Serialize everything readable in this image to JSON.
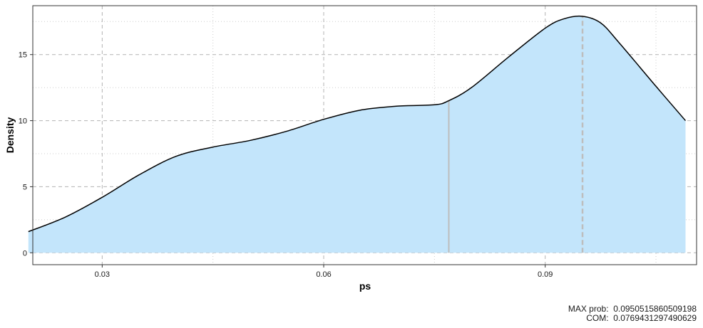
{
  "chart_data": {
    "type": "area",
    "title": "",
    "xlabel": "ps",
    "ylabel": "Density",
    "xlim": [
      0.0206,
      0.1105
    ],
    "ylim": [
      -0.9,
      18.7
    ],
    "x_major_ticks": [
      0.03,
      0.06,
      0.09
    ],
    "x_tick_labels": [
      "0.03",
      "0.06",
      "0.09"
    ],
    "x_minor_ticks": [
      0.045,
      0.075,
      0.105
    ],
    "y_major_ticks": [
      0,
      5,
      10,
      15
    ],
    "y_tick_labels": [
      "0",
      "5",
      "10",
      "15"
    ],
    "y_minor_ticks": [
      2.5,
      7.5,
      12.5,
      17.5
    ],
    "grid": true,
    "legend": "none",
    "fill_color": "#c3e5fb",
    "line_color": "#000000",
    "marker_color": "#bdbdbd",
    "density": {
      "x": [
        0.02,
        0.025,
        0.03,
        0.035,
        0.04,
        0.045,
        0.05,
        0.055,
        0.06,
        0.065,
        0.07,
        0.075,
        0.0769,
        0.08,
        0.085,
        0.09,
        0.0925,
        0.095,
        0.0975,
        0.1,
        0.105,
        0.109
      ],
      "y": [
        1.6,
        2.7,
        4.2,
        5.9,
        7.3,
        8.0,
        8.5,
        9.2,
        10.1,
        10.8,
        11.1,
        11.2,
        11.5,
        12.5,
        14.8,
        17.0,
        17.7,
        17.9,
        17.4,
        15.9,
        12.6,
        10.0
      ]
    },
    "markers": [
      {
        "x": 0.0769431297490629,
        "style": "solid"
      },
      {
        "x": 0.0950515860509198,
        "style": "dashed"
      }
    ]
  },
  "caption": {
    "max_prob": "MAX prob:  0.0950515860509198",
    "com": "COM:  0.0769431297490629"
  }
}
